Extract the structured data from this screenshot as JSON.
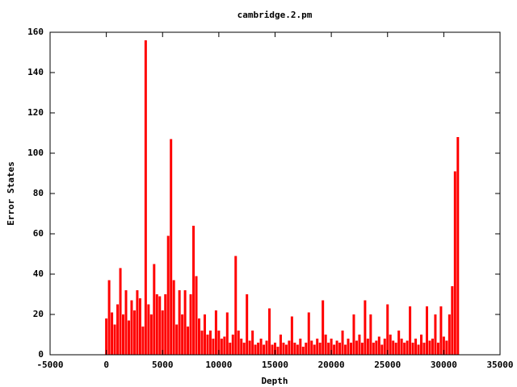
{
  "chart_data": {
    "type": "impulse",
    "title": "cambridge.2.pm",
    "xlabel": "Depth",
    "ylabel": "Error States",
    "color": "#ff0000",
    "xlim": [
      -5000,
      35000
    ],
    "ylim": [
      0,
      160
    ],
    "xticks": [
      -5000,
      0,
      5000,
      10000,
      15000,
      20000,
      25000,
      30000,
      35000
    ],
    "yticks": [
      0,
      20,
      40,
      60,
      80,
      100,
      120,
      140,
      160
    ],
    "x": [
      0,
      250,
      500,
      750,
      1000,
      1250,
      1500,
      1750,
      2000,
      2250,
      2500,
      2750,
      3000,
      3250,
      3500,
      3750,
      4000,
      4250,
      4500,
      4750,
      5000,
      5250,
      5500,
      5750,
      6000,
      6250,
      6500,
      6750,
      7000,
      7250,
      7500,
      7750,
      8000,
      8250,
      8500,
      8750,
      9000,
      9250,
      9500,
      9750,
      10000,
      10250,
      10500,
      10750,
      11000,
      11250,
      11500,
      11750,
      12000,
      12250,
      12500,
      12750,
      13000,
      13250,
      13500,
      13750,
      14000,
      14250,
      14500,
      14750,
      15000,
      15250,
      15500,
      15750,
      16000,
      16250,
      16500,
      16750,
      17000,
      17250,
      17500,
      17750,
      18000,
      18250,
      18500,
      18750,
      19000,
      19250,
      19500,
      19750,
      20000,
      20250,
      20500,
      20750,
      21000,
      21250,
      21500,
      21750,
      22000,
      22250,
      22500,
      22750,
      23000,
      23250,
      23500,
      23750,
      24000,
      24250,
      24500,
      24750,
      25000,
      25250,
      25500,
      25750,
      26000,
      26250,
      26500,
      26750,
      27000,
      27250,
      27500,
      27750,
      28000,
      28250,
      28500,
      28750,
      29000,
      29250,
      29500,
      29750,
      30000,
      30250,
      30500,
      30750,
      31000,
      31250
    ],
    "values": [
      18,
      37,
      21,
      15,
      25,
      43,
      20,
      32,
      17,
      27,
      22,
      32,
      28,
      14,
      156,
      25,
      20,
      45,
      30,
      29,
      22,
      30,
      59,
      107,
      37,
      15,
      32,
      20,
      32,
      14,
      30,
      64,
      39,
      18,
      12,
      20,
      10,
      12,
      8,
      22,
      12,
      8,
      9,
      21,
      6,
      10,
      49,
      12,
      8,
      6,
      30,
      7,
      12,
      5,
      6,
      8,
      5,
      7,
      23,
      5,
      6,
      4,
      10,
      6,
      5,
      7,
      19,
      6,
      5,
      8,
      4,
      6,
      21,
      7,
      5,
      8,
      6,
      27,
      10,
      6,
      8,
      5,
      7,
      6,
      12,
      5,
      8,
      6,
      20,
      7,
      10,
      6,
      27,
      8,
      20,
      6,
      7,
      9,
      5,
      8,
      25,
      10,
      7,
      6,
      12,
      8,
      6,
      7,
      24,
      6,
      8,
      5,
      10,
      6,
      24,
      7,
      8,
      20,
      6,
      24,
      9,
      7,
      20,
      34,
      91,
      108
    ]
  }
}
